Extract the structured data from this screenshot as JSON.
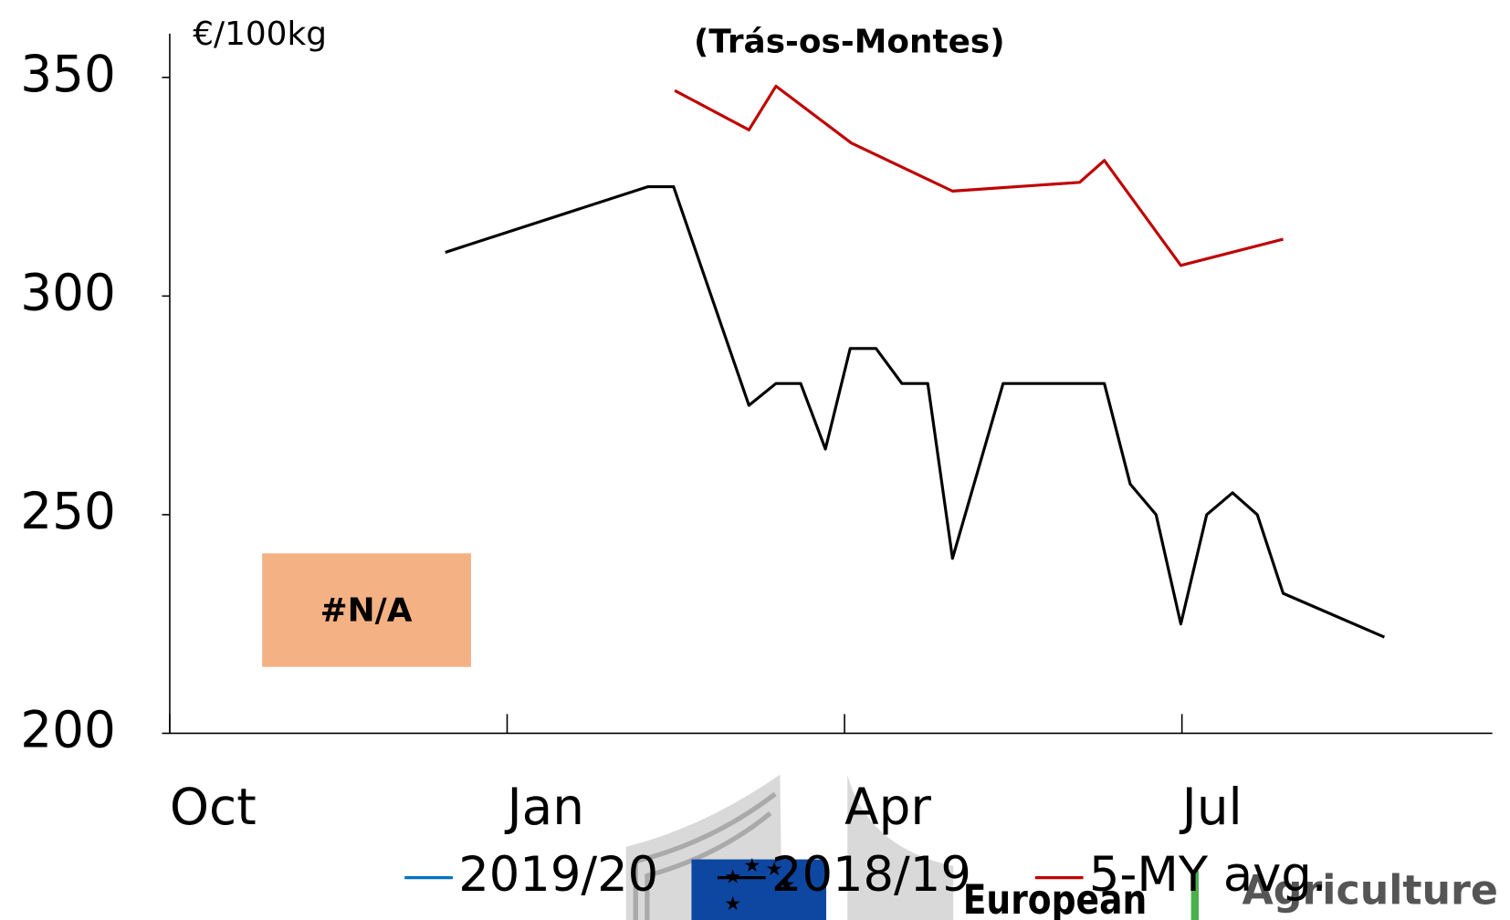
{
  "chart_data": {
    "type": "line",
    "subtitle": "(Trás-os-Montes)",
    "y_label": "€/100kg",
    "annotation": "#N/A",
    "xlim": [
      0,
      11.76
    ],
    "xticks": [
      {
        "value": 0,
        "label": "Oct"
      },
      {
        "value": 3,
        "label": "Jan"
      },
      {
        "value": 6,
        "label": "Apr"
      },
      {
        "value": 9,
        "label": "Jul"
      }
    ],
    "ylim": [
      200,
      360
    ],
    "yticks": [
      200,
      250,
      300,
      350
    ],
    "series": [
      {
        "name": "2019/20",
        "color": "#0070c0",
        "x": [],
        "values": []
      },
      {
        "name": "2018/19",
        "color": "#000000",
        "x": [
          2.45,
          4.25,
          4.48,
          5.15,
          5.39,
          5.61,
          5.83,
          6.05,
          6.28,
          6.51,
          6.74,
          6.96,
          7.41,
          8.31,
          8.54,
          8.77,
          8.99,
          9.22,
          9.45,
          9.67,
          9.9,
          10.8
        ],
        "values": [
          310,
          325,
          325,
          275,
          280,
          280,
          265,
          288,
          288,
          280,
          280,
          240,
          280,
          280,
          257,
          250,
          225,
          250,
          255,
          250,
          232,
          222
        ]
      },
      {
        "name": "5-MY avg.",
        "color": "#c00000",
        "x": [
          4.49,
          5.15,
          5.39,
          6.06,
          6.96,
          8.09,
          8.31,
          8.99,
          9.9
        ],
        "values": [
          347,
          338,
          348,
          335,
          324,
          326,
          331,
          307,
          313
        ]
      }
    ],
    "footer": {
      "logo_text": "European",
      "department": "Agriculture a"
    }
  }
}
